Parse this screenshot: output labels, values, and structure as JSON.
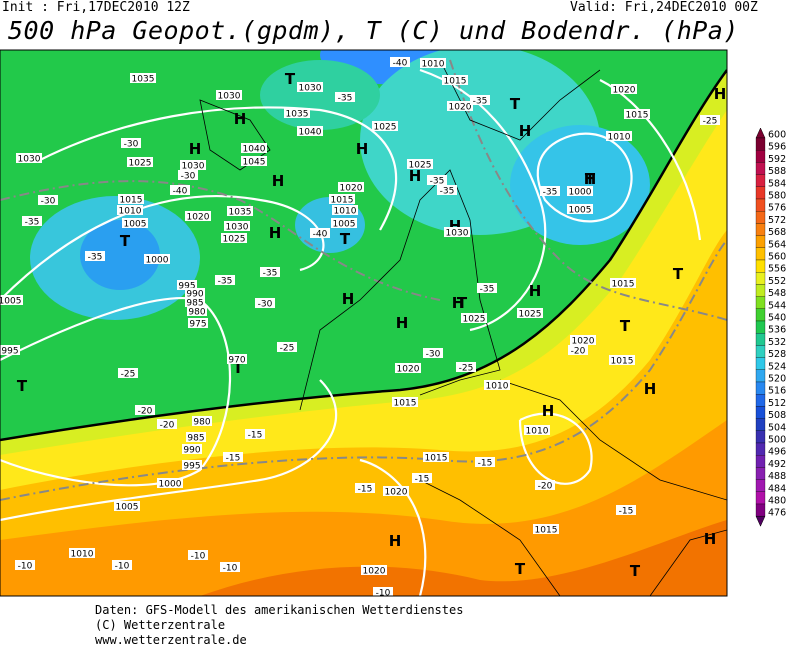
{
  "header": {
    "init": "Init : Fri,17DEC2010 12Z",
    "valid": "Valid: Fri,24DEC2010 00Z",
    "title": "500 hPa Geopot.(gpdm), T (C) und Bodendr. (hPa)"
  },
  "map": {
    "labels": [
      "H",
      "H",
      "H",
      "H",
      "H",
      "H",
      "H",
      "H",
      "H",
      "H",
      "H",
      "H",
      "H",
      "H",
      "H",
      "H",
      "H",
      "H",
      "T",
      "T",
      "T",
      "T",
      "T",
      "T",
      "T",
      "T",
      "T",
      "T",
      "T",
      "T",
      "1035",
      "1030",
      "1030",
      "1035",
      "1040",
      "1040",
      "1045",
      "1030",
      "1025",
      "1030",
      "1015",
      "1010",
      "1005",
      "1000",
      "1020",
      "1035",
      "1030",
      "1025",
      "1020",
      "1015",
      "1010",
      "1005",
      "1025",
      "1025",
      "1030",
      "1010",
      "1015",
      "1020",
      "1020",
      "1010",
      "1015",
      "1000",
      "1005",
      "995",
      "990",
      "985",
      "980",
      "975",
      "970",
      "980",
      "985",
      "990",
      "995",
      "1000",
      "1005",
      "1010",
      "1015",
      "1015",
      "1020",
      "1020",
      "1010",
      "1010",
      "1015",
      "1015",
      "1020",
      "1015",
      "1025",
      "1025",
      "1020",
      "1005",
      "995",
      "-40",
      "-35",
      "-35",
      "-30",
      "-30",
      "-40",
      "-30",
      "-35",
      "-35",
      "-35",
      "-35",
      "-30",
      "-25",
      "-25",
      "-20",
      "-20",
      "-15",
      "-15",
      "-15",
      "-15",
      "-15",
      "-10",
      "-10",
      "-10",
      "-10",
      "-10",
      "-20",
      "-15",
      "-20",
      "-25",
      "-40",
      "-35",
      "-35",
      "-35",
      "-30",
      "-25",
      "-35"
    ]
  },
  "scale": {
    "labels": [
      600,
      596,
      592,
      588,
      584,
      580,
      576,
      572,
      568,
      564,
      560,
      556,
      552,
      548,
      544,
      540,
      536,
      532,
      528,
      524,
      520,
      516,
      512,
      508,
      504,
      500,
      496,
      492,
      488,
      484,
      480,
      476
    ]
  },
  "footer": [
    "Daten: GFS-Modell des amerikanischen Wetterdienstes",
    "(C) Wetterzentrale",
    "www.wetterzentrale.de"
  ]
}
